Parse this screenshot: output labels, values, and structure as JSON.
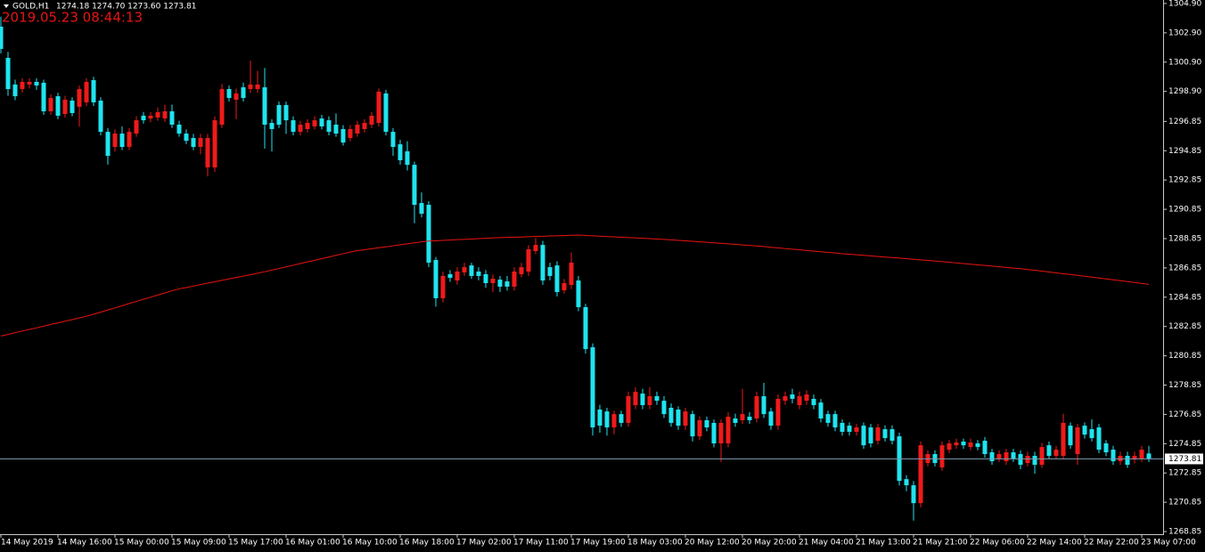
{
  "chart_data": {
    "type": "candlestick",
    "title": "GOLD,H1",
    "subtitle": "1274.18 1274.70 1273.60 1273.81",
    "timestamp": "2019.05.23 08:44:13",
    "bull_color": "#f01a1a",
    "bear_color": "#1fe4ef",
    "background": "#000000",
    "grid": false,
    "ylim": [
      1268.67,
      1305.14
    ],
    "yticks": [
      {
        "value": 1304.9,
        "label": "1304.90"
      },
      {
        "value": 1302.9,
        "label": "1302.90"
      },
      {
        "value": 1300.9,
        "label": "1300.90"
      },
      {
        "value": 1298.9,
        "label": "1298.90"
      },
      1296.85,
      1294.85,
      1292.85,
      1290.85,
      1288.85,
      1286.85,
      1284.85,
      1282.85,
      1280.85,
      1278.85,
      1276.85,
      1274.85,
      1272.85,
      1270.85,
      1268.85
    ],
    "current_price": 1273.81,
    "current_price_color": "#7d9cb3",
    "categories": [
      "14 May 2019",
      null,
      null,
      null,
      null,
      null,
      null,
      null,
      "14 May 16:00",
      null,
      null,
      null,
      null,
      null,
      null,
      null,
      "15 May 00:00",
      null,
      null,
      null,
      null,
      null,
      null,
      null,
      "15 May 09:00",
      null,
      null,
      null,
      null,
      null,
      null,
      null,
      "15 May 17:00",
      null,
      null,
      null,
      null,
      null,
      null,
      null,
      "16 May 01:00",
      null,
      null,
      null,
      null,
      null,
      null,
      null,
      "16 May 10:00",
      null,
      null,
      null,
      null,
      null,
      null,
      null,
      "16 May 18:00",
      null,
      null,
      null,
      null,
      null,
      null,
      null,
      "17 May 02:00",
      null,
      null,
      null,
      null,
      null,
      null,
      null,
      "17 May 11:00",
      null,
      null,
      null,
      null,
      null,
      null,
      null,
      "17 May 19:00",
      null,
      null,
      null,
      null,
      null,
      null,
      null,
      "18 May 03:00",
      null,
      null,
      null,
      null,
      null,
      null,
      null,
      "20 May 12:00",
      null,
      null,
      null,
      null,
      null,
      null,
      null,
      "20 May 20:00",
      null,
      null,
      null,
      null,
      null,
      null,
      null,
      "21 May 04:00",
      null,
      null,
      null,
      null,
      null,
      null,
      null,
      "21 May 13:00",
      null,
      null,
      null,
      null,
      null,
      null,
      null,
      "21 May 21:00",
      null,
      null,
      null,
      null,
      null,
      null,
      null,
      "22 May 06:00",
      null,
      null,
      null,
      null,
      null,
      null,
      null,
      "22 May 14:00",
      null,
      null,
      null,
      null,
      null,
      null,
      null,
      "22 May 22:00",
      null,
      null,
      null,
      null,
      null,
      null,
      null,
      "23 May 07:00",
      null
    ],
    "open": [
      1303.32,
      1301.19,
      1299.37,
      1299.06,
      1299.37,
      1299.55,
      1299.49,
      1297.54,
      1298.57,
      1297.36,
      1298.27,
      1297.85,
      1298.15,
      1299.67,
      1298.27,
      1296.14,
      1295.11,
      1296.02,
      1295.11,
      1296.02,
      1297.24,
      1297.05,
      1297.12,
      1297.05,
      1297.54,
      1296.63,
      1296.02,
      1295.72,
      1295.11,
      1293.71,
      1293.71,
      1296.63,
      1299.06,
      1298.33,
      1299.18,
      1299.06,
      1299.06,
      1299.18,
      1296.75,
      1297.97,
      1297.97,
      1296.93,
      1296.14,
      1296.33,
      1296.51,
      1297.05,
      1296.93,
      1296.63,
      1296.33,
      1295.72,
      1296.02,
      1296.33,
      1296.63,
      1296.75,
      1298.76,
      1296.14,
      1295.29,
      1294.81,
      1293.89,
      1291.28,
      1291.16,
      1287.39,
      1284.78,
      1286.42,
      1285.99,
      1286.54,
      1287.02,
      1286.6,
      1286.42,
      1285.81,
      1286.05,
      1285.93,
      1285.57,
      1286.42,
      1286.6,
      1288.0,
      1288.42,
      1286.9,
      1287.02,
      1285.32,
      1285.69,
      1285.99,
      1284.17,
      1281.43,
      1277.18,
      1277.05,
      1275.96,
      1276.87,
      1276.27,
      1277.48,
      1278.27,
      1277.48,
      1278.09,
      1277.78,
      1277.3,
      1277.18,
      1276.08,
      1276.87,
      1275.35,
      1276.45,
      1276.27,
      1274.87,
      1274.87,
      1276.57,
      1276.45,
      1276.69,
      1276.57,
      1278.09,
      1277.05,
      1276.08,
      1277.78,
      1278.21,
      1277.48,
      1277.78,
      1277.91,
      1277.66,
      1276.87,
      1276.87,
      1276.27,
      1276.08,
      1275.66,
      1276.08,
      1275.96,
      1275.05,
      1275.84,
      1275.84,
      1275.35,
      1272.43,
      1272.01,
      1270.79,
      1273.53,
      1274.14,
      1273.23,
      1274.44,
      1274.74,
      1274.99,
      1274.62,
      1274.87,
      1275.05,
      1274.26,
      1273.83,
      1273.65,
      1274.26,
      1274.14,
      1273.53,
      1274.02,
      1273.41,
      1274.74,
      1274.02,
      1274.02,
      1276.08,
      1274.14,
      1276.08,
      1275.84,
      1275.96,
      1274.87,
      1274.44,
      1273.65,
      1274.02,
      1273.77,
      1273.83,
      1274.18
    ],
    "high": [
      1304.0,
      1301.6,
      1299.7,
      1299.8,
      1299.8,
      1299.8,
      1299.7,
      1298.7,
      1298.8,
      1298.6,
      1298.5,
      1299.3,
      1299.8,
      1299.9,
      1298.5,
      1296.4,
      1296.3,
      1296.5,
      1296.4,
      1297.2,
      1297.5,
      1297.5,
      1297.8,
      1298.0,
      1298.0,
      1296.9,
      1296.3,
      1296.0,
      1296.0,
      1296.0,
      1297.2,
      1299.4,
      1299.3,
      1299.1,
      1299.5,
      1301.0,
      1300.3,
      1300.5,
      1297.0,
      1298.2,
      1298.2,
      1297.2,
      1296.9,
      1297.0,
      1297.2,
      1297.3,
      1297.2,
      1297.4,
      1296.6,
      1296.6,
      1296.9,
      1297.0,
      1297.5,
      1299.1,
      1299.0,
      1296.4,
      1295.6,
      1295.5,
      1294.1,
      1292.0,
      1291.4,
      1287.6,
      1286.6,
      1286.7,
      1286.9,
      1287.2,
      1287.2,
      1286.9,
      1286.7,
      1286.4,
      1286.3,
      1286.3,
      1286.9,
      1287.2,
      1288.4,
      1288.9,
      1288.7,
      1287.2,
      1287.3,
      1286.1,
      1287.9,
      1286.3,
      1284.4,
      1281.7,
      1277.5,
      1277.3,
      1277.1,
      1277.1,
      1278.4,
      1278.7,
      1278.6,
      1278.7,
      1278.4,
      1278.1,
      1277.6,
      1277.4,
      1277.3,
      1277.1,
      1276.7,
      1276.7,
      1276.5,
      1276.5,
      1277.0,
      1276.9,
      1278.6,
      1277.0,
      1278.4,
      1279.0,
      1277.3,
      1278.2,
      1278.4,
      1278.6,
      1278.4,
      1278.5,
      1278.2,
      1277.9,
      1277.1,
      1277.1,
      1276.5,
      1276.3,
      1276.2,
      1276.3,
      1276.2,
      1276.2,
      1276.1,
      1276.1,
      1275.6,
      1272.7,
      1272.3,
      1275.0,
      1274.4,
      1274.4,
      1275.0,
      1275.1,
      1275.2,
      1275.2,
      1275.2,
      1275.1,
      1275.3,
      1274.5,
      1274.4,
      1274.5,
      1274.5,
      1274.4,
      1274.3,
      1274.3,
      1274.9,
      1275.0,
      1274.7,
      1276.9,
      1276.3,
      1276.2,
      1276.3,
      1276.5,
      1276.2,
      1275.1,
      1274.7,
      1274.3,
      1274.3,
      1274.3,
      1274.7,
      1274.7
    ],
    "low": [
      1301.5,
      1298.6,
      1298.3,
      1298.8,
      1299.1,
      1299.0,
      1297.3,
      1297.3,
      1297.0,
      1297.1,
      1297.2,
      1296.5,
      1297.9,
      1297.9,
      1295.9,
      1293.9,
      1294.8,
      1294.9,
      1294.9,
      1295.8,
      1296.7,
      1296.8,
      1296.9,
      1296.8,
      1296.4,
      1295.8,
      1295.3,
      1294.9,
      1294.6,
      1293.1,
      1293.4,
      1296.4,
      1298.2,
      1297.0,
      1298.2,
      1298.8,
      1298.8,
      1295.0,
      1294.8,
      1296.4,
      1296.0,
      1295.9,
      1295.9,
      1296.1,
      1296.3,
      1296.3,
      1295.9,
      1295.8,
      1295.2,
      1295.5,
      1295.8,
      1296.1,
      1296.4,
      1296.5,
      1295.9,
      1294.5,
      1293.9,
      1293.5,
      1289.9,
      1290.3,
      1286.9,
      1284.2,
      1284.5,
      1285.9,
      1285.7,
      1286.3,
      1286.1,
      1286.0,
      1285.5,
      1285.2,
      1285.2,
      1285.3,
      1285.3,
      1286.2,
      1286.3,
      1287.8,
      1285.7,
      1286.0,
      1284.9,
      1285.1,
      1285.4,
      1283.9,
      1281.0,
      1275.4,
      1275.6,
      1275.4,
      1275.5,
      1276.0,
      1276.0,
      1277.2,
      1277.2,
      1277.2,
      1277.5,
      1276.6,
      1276.0,
      1275.8,
      1275.8,
      1275.0,
      1275.1,
      1275.7,
      1274.6,
      1273.6,
      1274.6,
      1276.0,
      1276.2,
      1276.2,
      1276.3,
      1276.6,
      1275.8,
      1275.8,
      1277.5,
      1277.6,
      1277.2,
      1277.5,
      1277.2,
      1276.3,
      1276.0,
      1275.7,
      1275.4,
      1275.4,
      1275.4,
      1274.5,
      1274.6,
      1274.8,
      1275.0,
      1274.8,
      1272.0,
      1271.6,
      1269.6,
      1270.5,
      1273.3,
      1273.3,
      1273.0,
      1274.2,
      1274.5,
      1274.5,
      1274.4,
      1274.4,
      1273.9,
      1273.4,
      1273.6,
      1273.4,
      1273.6,
      1273.1,
      1273.3,
      1272.8,
      1273.2,
      1273.8,
      1273.8,
      1273.8,
      1274.5,
      1273.4,
      1275.2,
      1275.0,
      1274.2,
      1274.0,
      1273.4,
      1273.4,
      1273.2,
      1273.5,
      1273.6,
      1273.6
    ],
    "close": [
      1301.8,
      1299.06,
      1298.57,
      1299.55,
      1299.55,
      1299.3,
      1297.54,
      1298.45,
      1297.24,
      1298.33,
      1297.42,
      1299.06,
      1299.55,
      1298.15,
      1296.14,
      1294.5,
      1296.02,
      1295.11,
      1296.14,
      1296.93,
      1296.93,
      1297.24,
      1297.48,
      1297.54,
      1296.63,
      1296.02,
      1295.53,
      1295.11,
      1295.72,
      1295.72,
      1296.93,
      1299.06,
      1298.45,
      1298.76,
      1298.45,
      1299.37,
      1299.37,
      1296.63,
      1296.33,
      1296.63,
      1296.93,
      1296.14,
      1296.63,
      1296.75,
      1296.93,
      1296.51,
      1296.14,
      1296.02,
      1295.41,
      1296.33,
      1296.63,
      1296.75,
      1297.24,
      1298.88,
      1296.14,
      1295.11,
      1294.2,
      1293.89,
      1291.16,
      1290.55,
      1287.21,
      1284.78,
      1286.3,
      1286.17,
      1286.6,
      1286.9,
      1286.3,
      1286.3,
      1285.81,
      1286.11,
      1285.57,
      1285.57,
      1286.6,
      1286.9,
      1288.12,
      1288.42,
      1285.99,
      1286.3,
      1285.2,
      1285.81,
      1287.21,
      1284.17,
      1281.31,
      1275.96,
      1276.08,
      1275.96,
      1276.87,
      1276.27,
      1278.09,
      1278.39,
      1277.48,
      1278.09,
      1277.78,
      1276.87,
      1276.27,
      1276.08,
      1277.05,
      1275.35,
      1276.45,
      1275.96,
      1274.87,
      1276.27,
      1276.69,
      1276.27,
      1276.87,
      1276.45,
      1278.09,
      1276.87,
      1276.08,
      1277.91,
      1278.09,
      1277.91,
      1278.09,
      1278.21,
      1277.48,
      1276.57,
      1276.27,
      1275.96,
      1275.66,
      1275.66,
      1275.96,
      1274.74,
      1274.87,
      1275.96,
      1275.23,
      1275.05,
      1272.31,
      1272.01,
      1270.79,
      1274.74,
      1274.14,
      1273.53,
      1274.74,
      1274.87,
      1274.93,
      1274.74,
      1274.93,
      1274.62,
      1274.14,
      1273.65,
      1274.14,
      1274.26,
      1273.83,
      1273.41,
      1274.02,
      1273.41,
      1274.62,
      1274.02,
      1274.44,
      1276.27,
      1274.74,
      1275.96,
      1275.47,
      1275.23,
      1274.44,
      1274.26,
      1273.65,
      1274.02,
      1273.41,
      1274.02,
      1274.44,
      1273.81
    ],
    "ma": {
      "color": "#e8140f",
      "values": [
        1282.2,
        1282.31,
        1282.43,
        1282.54,
        1282.65,
        1282.76,
        1282.87,
        1282.99,
        1283.1,
        1283.21,
        1283.32,
        1283.43,
        1283.55,
        1283.69,
        1283.83,
        1283.98,
        1284.12,
        1284.27,
        1284.42,
        1284.56,
        1284.71,
        1284.85,
        1285.0,
        1285.14,
        1285.29,
        1285.42,
        1285.51,
        1285.61,
        1285.71,
        1285.81,
        1285.9,
        1286.0,
        1286.1,
        1286.2,
        1286.29,
        1286.39,
        1286.49,
        1286.59,
        1286.7,
        1286.81,
        1286.92,
        1287.03,
        1287.15,
        1287.26,
        1287.37,
        1287.48,
        1287.59,
        1287.71,
        1287.82,
        1287.93,
        1288.03,
        1288.09,
        1288.16,
        1288.23,
        1288.29,
        1288.36,
        1288.43,
        1288.49,
        1288.56,
        1288.63,
        1288.68,
        1288.7,
        1288.73,
        1288.75,
        1288.78,
        1288.8,
        1288.82,
        1288.85,
        1288.87,
        1288.9,
        1288.92,
        1288.93,
        1288.95,
        1288.96,
        1288.98,
        1289.0,
        1289.01,
        1289.03,
        1289.04,
        1289.06,
        1289.08,
        1289.09,
        1289.06,
        1289.04,
        1289.02,
        1288.99,
        1288.97,
        1288.94,
        1288.92,
        1288.9,
        1288.87,
        1288.85,
        1288.82,
        1288.8,
        1288.77,
        1288.73,
        1288.7,
        1288.67,
        1288.63,
        1288.6,
        1288.56,
        1288.53,
        1288.49,
        1288.46,
        1288.42,
        1288.39,
        1288.35,
        1288.31,
        1288.26,
        1288.22,
        1288.17,
        1288.13,
        1288.09,
        1288.04,
        1288.0,
        1287.95,
        1287.91,
        1287.87,
        1287.82,
        1287.79,
        1287.75,
        1287.71,
        1287.67,
        1287.63,
        1287.59,
        1287.56,
        1287.52,
        1287.48,
        1287.44,
        1287.4,
        1287.36,
        1287.32,
        1287.28,
        1287.24,
        1287.19,
        1287.15,
        1287.1,
        1287.06,
        1287.02,
        1286.97,
        1286.93,
        1286.88,
        1286.84,
        1286.8,
        1286.74,
        1286.69,
        1286.63,
        1286.57,
        1286.51,
        1286.45,
        1286.4,
        1286.34,
        1286.28,
        1286.22,
        1286.16,
        1286.1,
        1286.04,
        1285.98,
        1285.92,
        1285.86,
        1285.79,
        1285.73
      ]
    }
  }
}
